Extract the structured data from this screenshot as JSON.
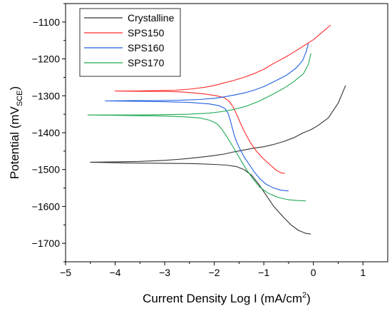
{
  "chart_data": {
    "type": "line",
    "title": "",
    "xlabel": {
      "main": "Current Density Log I (mA/cm",
      "sup": "2",
      "tail": ")"
    },
    "ylabel": {
      "main": "Potential (mV",
      "sub": "SCE",
      "tail": ")"
    },
    "xlim": [
      -5,
      1.5
    ],
    "ylim": [
      -1750,
      -1050
    ],
    "xticks": [
      -5,
      -4,
      -3,
      -2,
      -1,
      0,
      1
    ],
    "yticks": [
      -1700,
      -1600,
      -1500,
      -1400,
      -1300,
      -1200,
      -1100
    ],
    "xtick_labels": [
      "−5",
      "−4",
      "−3",
      "−2",
      "−1",
      "0",
      "1"
    ],
    "ytick_labels": [
      "−1700",
      "−1600",
      "−1500",
      "−1400",
      "−1300",
      "−1200",
      "−1100"
    ],
    "grid": false,
    "legend_position": "top-left",
    "series": [
      {
        "name": "Crystalline",
        "color": "#333333",
        "points": [
          [
            0.65,
            -1272
          ],
          [
            0.5,
            -1320
          ],
          [
            0.3,
            -1360
          ],
          [
            0.1,
            -1380
          ],
          [
            -0.05,
            -1392
          ],
          [
            -0.2,
            -1400
          ],
          [
            -0.4,
            -1414
          ],
          [
            -0.6,
            -1424
          ],
          [
            -0.8,
            -1432
          ],
          [
            -1.0,
            -1438
          ],
          [
            -1.2,
            -1442
          ],
          [
            -1.4,
            -1447
          ],
          [
            -1.6,
            -1452
          ],
          [
            -1.8,
            -1458
          ],
          [
            -2.0,
            -1462
          ],
          [
            -2.3,
            -1467
          ],
          [
            -2.6,
            -1471
          ],
          [
            -3.0,
            -1475
          ],
          [
            -3.5,
            -1478
          ],
          [
            -4.0,
            -1479
          ],
          [
            -4.5,
            -1480
          ],
          [
            -3.8,
            -1482
          ],
          [
            -3.0,
            -1483
          ],
          [
            -2.4,
            -1484
          ],
          [
            -2.0,
            -1486
          ],
          [
            -1.75,
            -1488
          ],
          [
            -1.55,
            -1492
          ],
          [
            -1.4,
            -1500
          ],
          [
            -1.25,
            -1515
          ],
          [
            -1.1,
            -1540
          ],
          [
            -0.95,
            -1570
          ],
          [
            -0.8,
            -1600
          ],
          [
            -0.6,
            -1630
          ],
          [
            -0.45,
            -1650
          ],
          [
            -0.3,
            -1665
          ],
          [
            -0.15,
            -1673
          ],
          [
            -0.05,
            -1675
          ]
        ]
      },
      {
        "name": "SPS150",
        "color": "#ff2a2a",
        "points": [
          [
            0.35,
            -1108
          ],
          [
            0.2,
            -1125
          ],
          [
            0.0,
            -1148
          ],
          [
            -0.2,
            -1165
          ],
          [
            -0.4,
            -1182
          ],
          [
            -0.6,
            -1198
          ],
          [
            -0.8,
            -1212
          ],
          [
            -1.0,
            -1228
          ],
          [
            -1.2,
            -1240
          ],
          [
            -1.4,
            -1250
          ],
          [
            -1.6,
            -1258
          ],
          [
            -1.8,
            -1265
          ],
          [
            -2.0,
            -1272
          ],
          [
            -2.2,
            -1277
          ],
          [
            -2.5,
            -1282
          ],
          [
            -2.8,
            -1285
          ],
          [
            -3.2,
            -1286
          ],
          [
            -3.6,
            -1287
          ],
          [
            -4.0,
            -1287
          ],
          [
            -3.5,
            -1288
          ],
          [
            -3.0,
            -1288
          ],
          [
            -2.6,
            -1290
          ],
          [
            -2.2,
            -1295
          ],
          [
            -1.95,
            -1300
          ],
          [
            -1.8,
            -1305
          ],
          [
            -1.7,
            -1315
          ],
          [
            -1.62,
            -1330
          ],
          [
            -1.55,
            -1350
          ],
          [
            -1.47,
            -1375
          ],
          [
            -1.38,
            -1400
          ],
          [
            -1.28,
            -1425
          ],
          [
            -1.15,
            -1450
          ],
          [
            -1.0,
            -1472
          ],
          [
            -0.85,
            -1490
          ],
          [
            -0.75,
            -1502
          ],
          [
            -0.65,
            -1509
          ],
          [
            -0.58,
            -1510
          ]
        ]
      },
      {
        "name": "SPS160",
        "color": "#1f5fe0",
        "points": [
          [
            -0.1,
            -1158
          ],
          [
            -0.15,
            -1182
          ],
          [
            -0.22,
            -1205
          ],
          [
            -0.35,
            -1225
          ],
          [
            -0.55,
            -1245
          ],
          [
            -0.8,
            -1262
          ],
          [
            -1.0,
            -1275
          ],
          [
            -1.2,
            -1285
          ],
          [
            -1.38,
            -1292
          ],
          [
            -1.6,
            -1298
          ],
          [
            -1.8,
            -1303
          ],
          [
            -2.0,
            -1307
          ],
          [
            -2.3,
            -1310
          ],
          [
            -2.7,
            -1312
          ],
          [
            -3.2,
            -1313
          ],
          [
            -3.7,
            -1313
          ],
          [
            -4.2,
            -1314
          ],
          [
            -3.6,
            -1315
          ],
          [
            -3.0,
            -1316
          ],
          [
            -2.5,
            -1318
          ],
          [
            -2.1,
            -1322
          ],
          [
            -1.9,
            -1327
          ],
          [
            -1.78,
            -1335
          ],
          [
            -1.72,
            -1348
          ],
          [
            -1.68,
            -1365
          ],
          [
            -1.64,
            -1385
          ],
          [
            -1.6,
            -1405
          ],
          [
            -1.55,
            -1425
          ],
          [
            -1.48,
            -1445
          ],
          [
            -1.4,
            -1465
          ],
          [
            -1.3,
            -1485
          ],
          [
            -1.2,
            -1505
          ],
          [
            -1.08,
            -1525
          ],
          [
            -0.95,
            -1540
          ],
          [
            -0.8,
            -1550
          ],
          [
            -0.65,
            -1556
          ],
          [
            -0.5,
            -1558
          ]
        ]
      },
      {
        "name": "SPS170",
        "color": "#1faa55",
        "points": [
          [
            -0.05,
            -1185
          ],
          [
            -0.1,
            -1215
          ],
          [
            -0.2,
            -1240
          ],
          [
            -0.4,
            -1262
          ],
          [
            -0.6,
            -1280
          ],
          [
            -0.85,
            -1298
          ],
          [
            -1.1,
            -1315
          ],
          [
            -1.35,
            -1328
          ],
          [
            -1.6,
            -1337
          ],
          [
            -1.85,
            -1343
          ],
          [
            -2.1,
            -1347
          ],
          [
            -2.5,
            -1350
          ],
          [
            -3.0,
            -1351
          ],
          [
            -3.5,
            -1352
          ],
          [
            -4.0,
            -1352
          ],
          [
            -4.55,
            -1352
          ],
          [
            -4.0,
            -1353
          ],
          [
            -3.5,
            -1354
          ],
          [
            -3.0,
            -1355
          ],
          [
            -2.6,
            -1357
          ],
          [
            -2.3,
            -1360
          ],
          [
            -2.1,
            -1366
          ],
          [
            -1.95,
            -1375
          ],
          [
            -1.85,
            -1390
          ],
          [
            -1.75,
            -1410
          ],
          [
            -1.65,
            -1432
          ],
          [
            -1.55,
            -1455
          ],
          [
            -1.45,
            -1478
          ],
          [
            -1.35,
            -1500
          ],
          [
            -1.22,
            -1525
          ],
          [
            -1.08,
            -1548
          ],
          [
            -0.9,
            -1565
          ],
          [
            -0.7,
            -1576
          ],
          [
            -0.5,
            -1582
          ],
          [
            -0.3,
            -1584
          ],
          [
            -0.15,
            -1585
          ]
        ]
      }
    ]
  }
}
